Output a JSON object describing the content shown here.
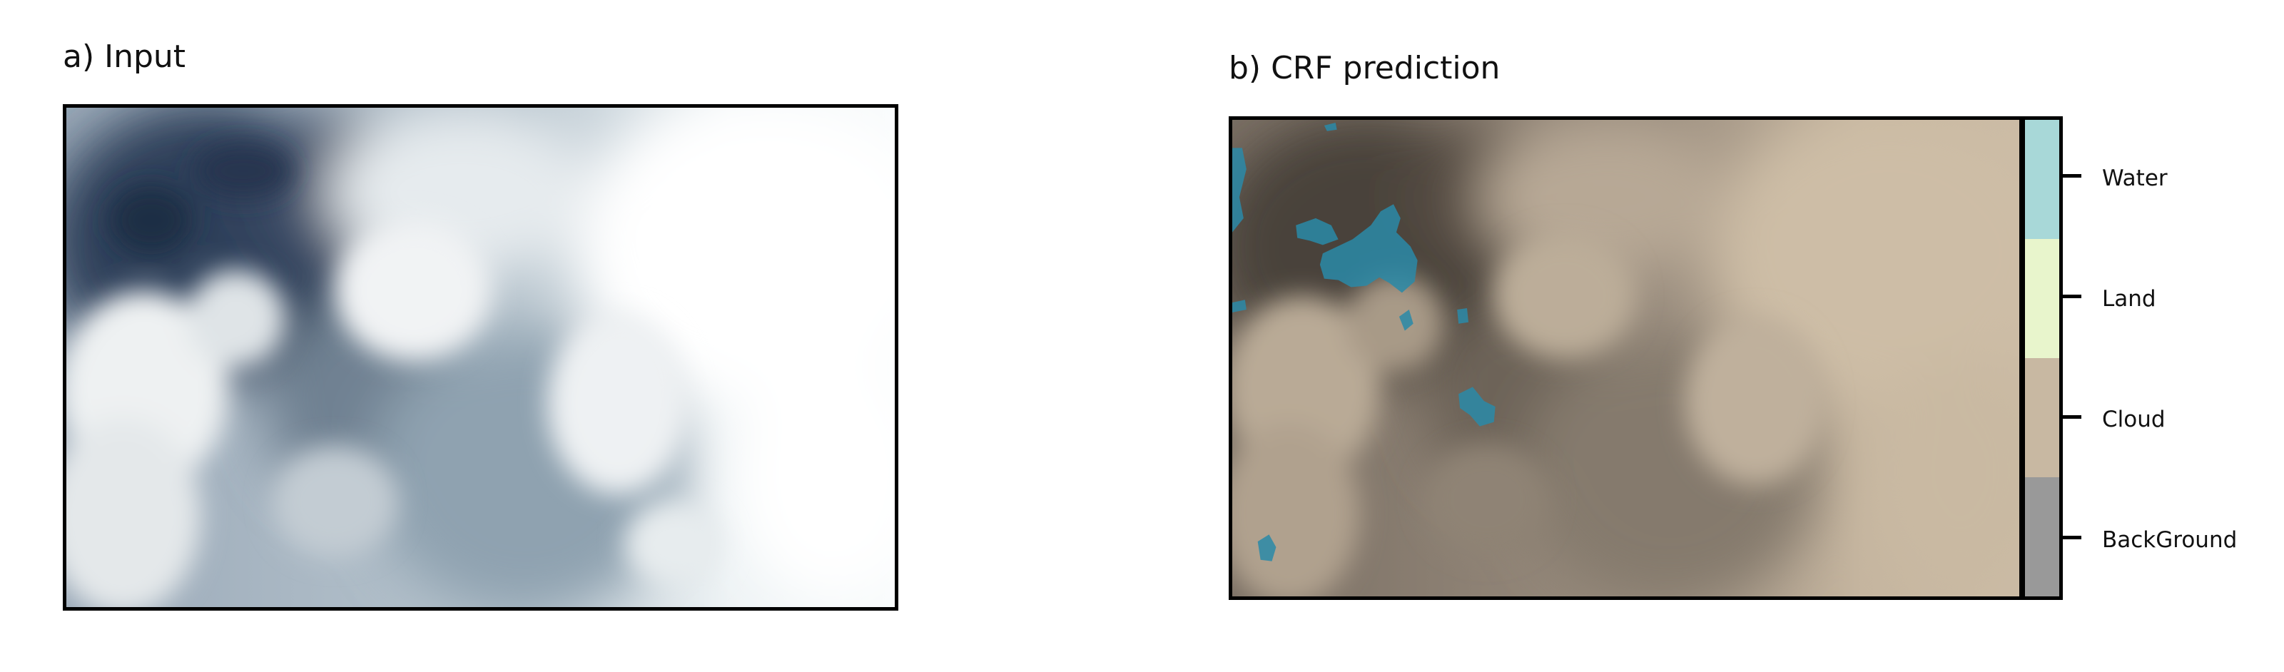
{
  "panels": {
    "input": {
      "title": "a) Input",
      "image": "cloud-satellite-image"
    },
    "prediction": {
      "title": "b) CRF prediction",
      "image": "crf-segmentation-overlay"
    }
  },
  "legend": {
    "classes": [
      {
        "label": "Water",
        "color": "#a8d8d8"
      },
      {
        "label": "Land",
        "color": "#e8f5cc"
      },
      {
        "label": "Cloud",
        "color": "#c8b8a2"
      },
      {
        "label": "BackGround",
        "color": "#999999"
      }
    ]
  },
  "colors": {
    "water_overlay": "#2a8aa8",
    "cloud_tint": "#c8b8a2",
    "cloud_shadow": "#2f3f5a",
    "cloud_white": "#ffffff"
  }
}
